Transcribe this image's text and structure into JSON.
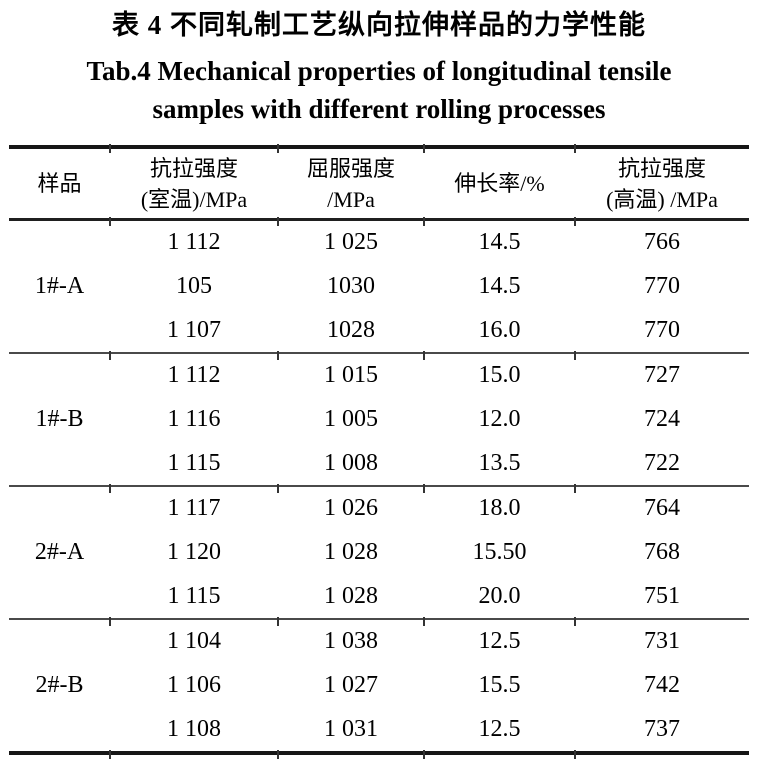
{
  "title": {
    "zh": "表 4  不同轧制工艺纵向拉伸样品的力学性能",
    "en_line1": "Tab.4   Mechanical properties of longitudinal tensile",
    "en_line2": "samples with different rolling processes"
  },
  "table": {
    "headers": [
      {
        "lines": [
          "样品"
        ]
      },
      {
        "lines": [
          "抗拉强度",
          "(室温)/MPa"
        ]
      },
      {
        "lines": [
          "屈服强度",
          "/MPa"
        ]
      },
      {
        "lines": [
          "伸长率/%"
        ]
      },
      {
        "lines": [
          "抗拉强度",
          "(高温) /MPa"
        ]
      }
    ],
    "groups": [
      {
        "sample": "1#-A",
        "rows": [
          [
            "1 112",
            "1 025",
            "14.5",
            "766"
          ],
          [
            "105",
            "1030",
            "14.5",
            "770"
          ],
          [
            "1 107",
            "1028",
            "16.0",
            "770"
          ]
        ]
      },
      {
        "sample": "1#-B",
        "rows": [
          [
            "1 112",
            "1 015",
            "15.0",
            "727"
          ],
          [
            "1 116",
            "1 005",
            "12.0",
            "724"
          ],
          [
            "1 115",
            "1 008",
            "13.5",
            "722"
          ]
        ]
      },
      {
        "sample": "2#-A",
        "rows": [
          [
            "1 117",
            "1 026",
            "18.0",
            "764"
          ],
          [
            "1 120",
            "1 028",
            "15.50",
            "768"
          ],
          [
            "1 115",
            "1 028",
            "20.0",
            "751"
          ]
        ]
      },
      {
        "sample": "2#-B",
        "rows": [
          [
            "1 104",
            "1 038",
            "12.5",
            "731"
          ],
          [
            "1 106",
            "1 027",
            "15.5",
            "742"
          ],
          [
            "1 108",
            "1 031",
            "12.5",
            "737"
          ]
        ]
      }
    ]
  },
  "colors": {
    "background": "#ffffff",
    "text": "#000000",
    "rule_heavy": "#161616",
    "rule_light": "#4a4a4a"
  }
}
